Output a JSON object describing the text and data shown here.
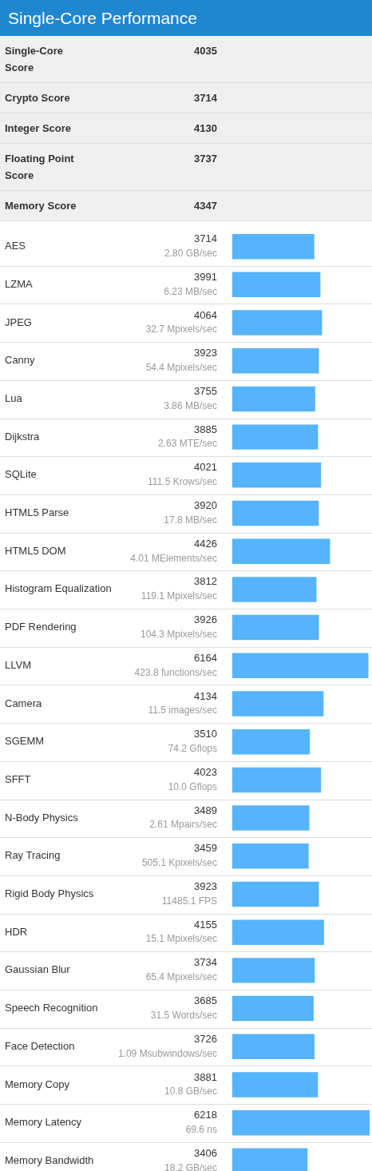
{
  "chart_data": {
    "type": "bar",
    "orientation": "horizontal",
    "title": "Single-Core Performance",
    "categories": [
      "AES",
      "LZMA",
      "JPEG",
      "Canny",
      "Lua",
      "Dijkstra",
      "SQLite",
      "HTML5 Parse",
      "HTML5 DOM",
      "Histogram Equalization",
      "PDF Rendering",
      "LLVM",
      "Camera",
      "SGEMM",
      "SFFT",
      "N-Body Physics",
      "Ray Tracing",
      "Rigid Body Physics",
      "HDR",
      "Gaussian Blur",
      "Speech Recognition",
      "Face Detection",
      "Memory Copy",
      "Memory Latency",
      "Memory Bandwidth"
    ],
    "values": [
      3714,
      3991,
      4064,
      3923,
      3755,
      3885,
      4021,
      3920,
      4426,
      3812,
      3926,
      6164,
      4134,
      3510,
      4023,
      3489,
      3459,
      3923,
      4155,
      3734,
      3685,
      3726,
      3881,
      6218,
      3406
    ],
    "color": "#55b4fb",
    "data_labels": true,
    "annotations": [
      "Single-Core Score",
      "4035",
      "Crypto Score",
      "3714",
      "Integer Score",
      "4130",
      "Floating Point Score",
      "3737",
      "Memory Score",
      "4347",
      "2.80 GB/sec",
      "6.23 MB/sec",
      "32.7 Mpixels/sec",
      "54.4 Mpixels/sec",
      "3.86 MB/sec",
      "2.63 MTE/sec",
      "111.5 Krows/sec",
      "17.8 MB/sec",
      "4.01 MElements/sec",
      "119.1 Mpixels/sec",
      "104.3 Mpixels/sec",
      "423.8 functions/sec",
      "11.5 images/sec",
      "74.2 Gflops",
      "10.0 Gflops",
      "2.61 Mpairs/sec",
      "505.1 Kpixels/sec",
      "11485.1 FPS",
      "15.1 Mpixels/sec",
      "65.4 Mpixels/sec",
      "31.5 Words/sec",
      "1.09 Msubwindows/sec",
      "10.8 GB/sec",
      "69.6 ns",
      "18.2 GB/sec"
    ]
  }
}
